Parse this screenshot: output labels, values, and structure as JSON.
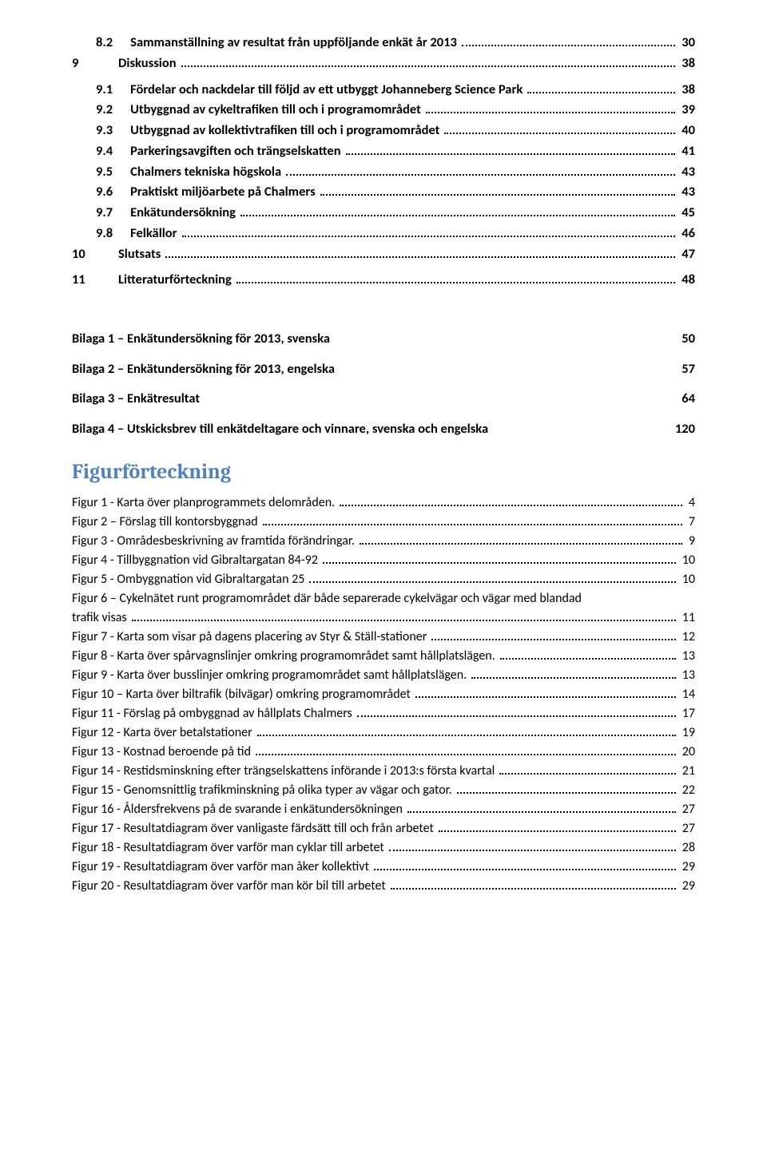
{
  "toc": [
    {
      "num": "8.2",
      "label": "Sammanställning av resultat från uppföljande enkät år 2013",
      "page": "30",
      "indent": 1
    },
    {
      "num": "9",
      "label": "Diskussion",
      "page": "38",
      "indent": 0
    },
    {
      "num": "9.1",
      "label": "Fördelar och nackdelar till följd av ett utbyggt Johanneberg Science Park",
      "page": "38",
      "indent": 1
    },
    {
      "num": "9.2",
      "label": "Utbyggnad av cykeltrafiken till och i programområdet",
      "page": "39",
      "indent": 1
    },
    {
      "num": "9.3",
      "label": "Utbyggnad av kollektivtrafiken till och i programområdet",
      "page": "40",
      "indent": 1
    },
    {
      "num": "9.4",
      "label": "Parkeringsavgiften och trängselskatten",
      "page": "41",
      "indent": 1
    },
    {
      "num": "9.5",
      "label": "Chalmers tekniska högskola",
      "page": "43",
      "indent": 1
    },
    {
      "num": "9.6",
      "label": "Praktiskt miljöarbete på Chalmers",
      "page": "43",
      "indent": 1
    },
    {
      "num": "9.7",
      "label": "Enkätundersökning",
      "page": "45",
      "indent": 1
    },
    {
      "num": "9.8",
      "label": "Felkällor",
      "page": "46",
      "indent": 1
    },
    {
      "num": "10",
      "label": "Slutsats",
      "page": "47",
      "indent": 0
    },
    {
      "num": "11",
      "label": "Litteraturförteckning",
      "page": "48",
      "indent": 0
    }
  ],
  "bilagor": [
    {
      "label": "Bilaga 1 – Enkätundersökning för 2013, svenska",
      "page": "50"
    },
    {
      "label": "Bilaga 2 – Enkätundersökning för 2013, engelska",
      "page": "57"
    },
    {
      "label": "Bilaga 3 – Enkätresultat",
      "page": "64"
    },
    {
      "label": "Bilaga 4 – Utskicksbrev till enkätdeltagare och vinnare, svenska och engelska",
      "page": "120"
    }
  ],
  "figHeading": "Figurförteckning",
  "figures": [
    {
      "label": "Figur 1 - Karta över planprogrammets delområden.",
      "page": "4"
    },
    {
      "label": "Figur 2 – Förslag till kontorsbyggnad",
      "page": "7"
    },
    {
      "label": "Figur 3 - Områdesbeskrivning av framtida förändringar.",
      "page": "9"
    },
    {
      "label": "Figur 4 - Tillbyggnation vid Gibraltargatan 84-92",
      "page": "10"
    },
    {
      "label": "Figur 5 - Ombyggnation vid Gibraltargatan 25",
      "page": "10"
    },
    {
      "label": "Figur 6 – Cykelnätet runt programområdet där både separerade cykelvägar och vägar med blandad",
      "cont": "trafik visas",
      "page": "11"
    },
    {
      "label": "Figur 7 - Karta som visar på dagens placering av Styr & Ställ-stationer",
      "page": "12"
    },
    {
      "label": "Figur 8 - Karta över spårvagnslinjer omkring programområdet samt hållplatslägen.",
      "page": "13"
    },
    {
      "label": "Figur 9 - Karta över busslinjer omkring programområdet samt hållplatslägen.",
      "page": "13"
    },
    {
      "label": "Figur 10 – Karta över biltrafik (bilvägar) omkring programområdet",
      "page": "14"
    },
    {
      "label": "Figur 11 - Förslag på ombyggnad av hållplats Chalmers",
      "page": "17"
    },
    {
      "label": "Figur 12 - Karta över betalstationer",
      "page": "19"
    },
    {
      "label": "Figur 13 - Kostnad beroende på tid",
      "page": "20"
    },
    {
      "label": "Figur 14 - Restidsminskning efter trängselskattens införande i 2013:s första kvartal",
      "page": "21"
    },
    {
      "label": "Figur 15 - Genomsnittlig trafikminskning på olika typer av vägar och gator.",
      "page": "22"
    },
    {
      "label": "Figur 16 - Åldersfrekvens på de svarande i enkätundersökningen",
      "page": "27"
    },
    {
      "label": "Figur 17 - Resultatdiagram över vanligaste färdsätt till och från arbetet",
      "page": "27"
    },
    {
      "label": "Figur 18 - Resultatdiagram över varför man cyklar till arbetet",
      "page": "28"
    },
    {
      "label": "Figur 19 - Resultatdiagram över varför man åker kollektivt",
      "page": "29"
    },
    {
      "label": "Figur 20 - Resultatdiagram över varför man kör bil till arbetet",
      "page": "29"
    }
  ]
}
